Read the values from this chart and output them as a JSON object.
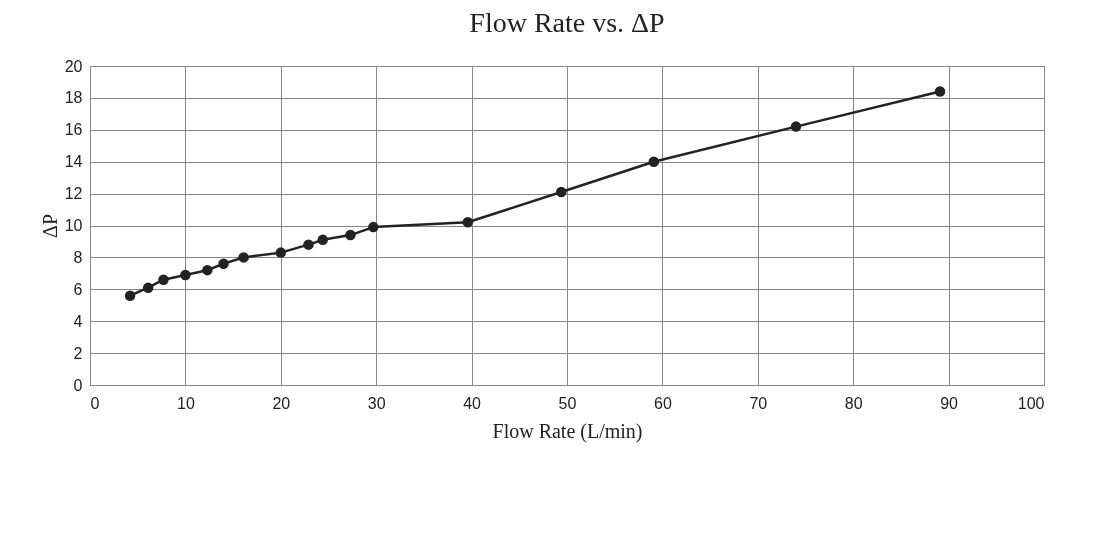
{
  "chart_data": {
    "type": "line",
    "title": "Flow Rate vs. ΔP",
    "xlabel": "Flow Rate (L/min)",
    "ylabel": "ΔP",
    "x": [
      4.2,
      6.1,
      7.7,
      10.0,
      12.3,
      14.0,
      16.1,
      20.0,
      22.9,
      24.4,
      27.3,
      29.7,
      39.6,
      49.4,
      59.1,
      74.0,
      89.1
    ],
    "series": [
      {
        "color": "#222222",
        "values": [
          5.6,
          6.1,
          6.6,
          6.9,
          7.2,
          7.6,
          8.0,
          8.3,
          8.8,
          9.1,
          9.4,
          9.9,
          10.2,
          12.1,
          14.0,
          16.2,
          18.4
        ]
      }
    ],
    "xlim": [
      0,
      100
    ],
    "xticks": [
      0,
      10,
      20,
      30,
      40,
      50,
      60,
      70,
      80,
      90,
      100
    ],
    "ylim": [
      0,
      20
    ],
    "yticks": [
      0,
      2,
      4,
      6,
      8,
      10,
      12,
      14,
      16,
      18,
      20
    ],
    "grid": true,
    "marker": "circle",
    "line_style": "solid"
  }
}
